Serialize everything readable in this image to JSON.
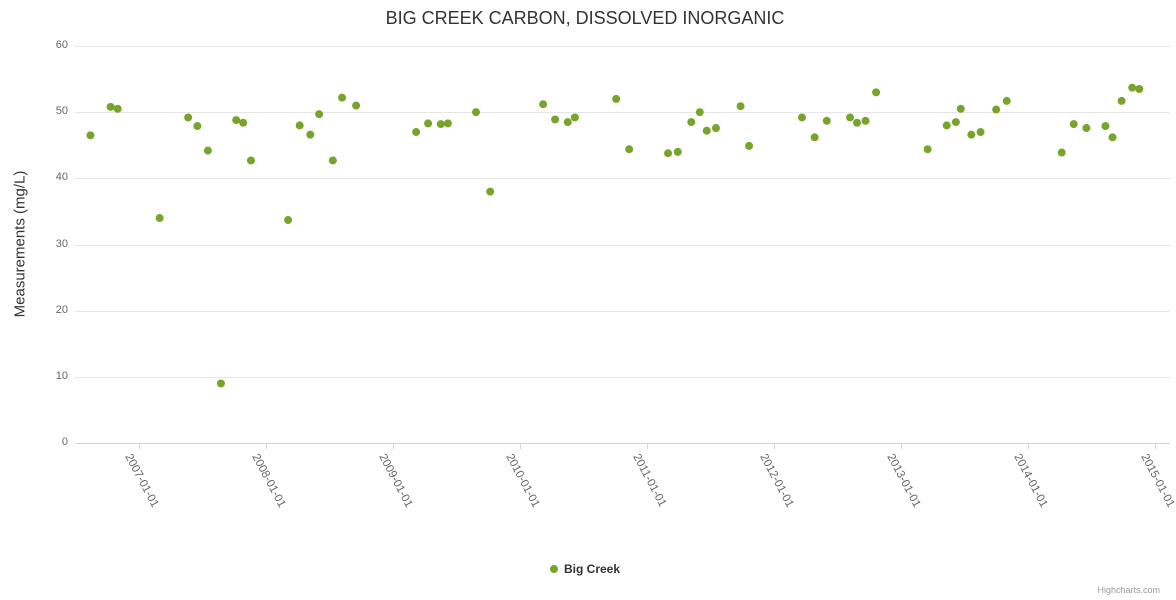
{
  "chart_data": {
    "type": "scatter",
    "title": "BIG CREEK CARBON, DISSOLVED INORGANIC",
    "xlabel": "",
    "ylabel": "Measurements (mg/L)",
    "ylim": [
      0,
      60
    ],
    "y_ticks": [
      0,
      10,
      20,
      30,
      40,
      50,
      60
    ],
    "x_tick_labels": [
      "2007-01-01",
      "2008-01-01",
      "2009-01-01",
      "2010-01-01",
      "2011-01-01",
      "2012-01-01",
      "2013-01-01",
      "2014-01-01",
      "2015-01-01"
    ],
    "x_range": [
      "2006-07-01",
      "2015-02-15"
    ],
    "grid": true,
    "legend_position": "bottom",
    "marker_color": "#77a52c",
    "series": [
      {
        "name": "Big Creek",
        "points": [
          [
            "2006-08-15",
            46.5
          ],
          [
            "2006-10-12",
            50.8
          ],
          [
            "2006-11-02",
            50.5
          ],
          [
            "2007-03-01",
            34.0
          ],
          [
            "2007-05-22",
            49.2
          ],
          [
            "2007-06-18",
            47.9
          ],
          [
            "2007-07-18",
            44.2
          ],
          [
            "2007-08-25",
            9.0
          ],
          [
            "2007-10-08",
            48.8
          ],
          [
            "2007-10-28",
            48.4
          ],
          [
            "2007-11-20",
            42.7
          ],
          [
            "2008-03-05",
            33.7
          ],
          [
            "2008-04-08",
            48.0
          ],
          [
            "2008-05-08",
            46.6
          ],
          [
            "2008-06-03",
            49.7
          ],
          [
            "2008-07-12",
            42.7
          ],
          [
            "2008-08-08",
            52.2
          ],
          [
            "2008-09-18",
            51.0
          ],
          [
            "2009-03-08",
            47.0
          ],
          [
            "2009-04-12",
            48.3
          ],
          [
            "2009-05-18",
            48.2
          ],
          [
            "2009-06-08",
            48.3
          ],
          [
            "2009-08-28",
            50.0
          ],
          [
            "2009-10-08",
            38.0
          ],
          [
            "2010-03-08",
            51.2
          ],
          [
            "2010-04-12",
            48.9
          ],
          [
            "2010-05-18",
            48.5
          ],
          [
            "2010-06-08",
            49.2
          ],
          [
            "2010-10-05",
            52.0
          ],
          [
            "2010-11-12",
            44.4
          ],
          [
            "2011-03-02",
            43.8
          ],
          [
            "2011-03-30",
            44.0
          ],
          [
            "2011-05-08",
            48.5
          ],
          [
            "2011-06-02",
            50.0
          ],
          [
            "2011-06-22",
            47.2
          ],
          [
            "2011-07-18",
            47.6
          ],
          [
            "2011-09-28",
            50.9
          ],
          [
            "2011-10-22",
            44.9
          ],
          [
            "2012-03-22",
            49.2
          ],
          [
            "2012-04-28",
            46.2
          ],
          [
            "2012-06-02",
            48.7
          ],
          [
            "2012-08-08",
            49.2
          ],
          [
            "2012-08-28",
            48.4
          ],
          [
            "2012-09-22",
            48.7
          ],
          [
            "2012-10-22",
            53.0
          ],
          [
            "2013-03-18",
            44.4
          ],
          [
            "2013-05-12",
            48.0
          ],
          [
            "2013-06-08",
            48.5
          ],
          [
            "2013-06-22",
            50.5
          ],
          [
            "2013-07-22",
            46.6
          ],
          [
            "2013-08-18",
            47.0
          ],
          [
            "2013-10-02",
            50.4
          ],
          [
            "2013-11-02",
            51.7
          ],
          [
            "2014-04-08",
            43.9
          ],
          [
            "2014-05-12",
            48.2
          ],
          [
            "2014-06-18",
            47.6
          ],
          [
            "2014-08-12",
            47.9
          ],
          [
            "2014-09-02",
            46.2
          ],
          [
            "2014-09-28",
            51.7
          ],
          [
            "2014-10-28",
            53.7
          ],
          [
            "2014-11-18",
            53.5
          ]
        ]
      }
    ]
  },
  "credits": "Highcharts.com",
  "colors": {
    "grid": "#e6e6e6",
    "axis": "#ccd6eb",
    "tick_label": "#666666",
    "title": "#333333",
    "marker": "#77a52c"
  }
}
